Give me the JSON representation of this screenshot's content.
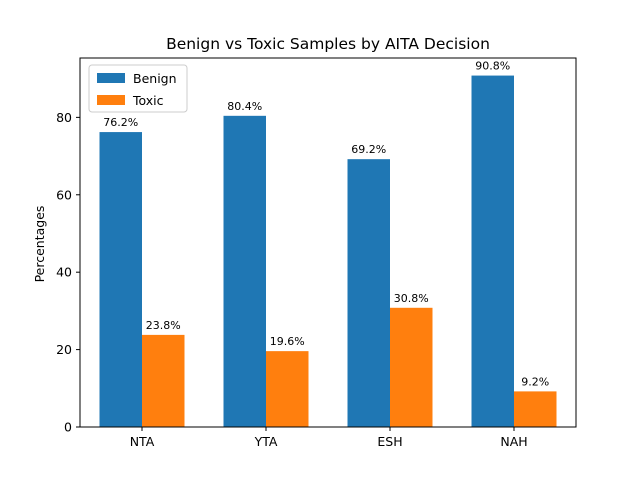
{
  "chart_data": {
    "type": "bar",
    "title": "Benign vs Toxic Samples by AITA Decision",
    "xlabel": "",
    "ylabel": "Percentages",
    "categories": [
      "NTA",
      "YTA",
      "ESH",
      "NAH"
    ],
    "series": [
      {
        "name": "Benign",
        "values": [
          76.2,
          80.4,
          69.2,
          90.8
        ],
        "labels": [
          "76.2%",
          "80.4%",
          "69.2%",
          "90.8%"
        ],
        "color": "#1f77b4"
      },
      {
        "name": "Toxic",
        "values": [
          23.8,
          19.6,
          30.8,
          9.2
        ],
        "labels": [
          "23.8%",
          "19.6%",
          "30.8%",
          "9.2%"
        ],
        "color": "#ff7f0e"
      }
    ],
    "ylim": [
      0,
      95.34
    ],
    "yticks": [
      0,
      20,
      40,
      60,
      80
    ],
    "grid": false,
    "legend_position": "top-left"
  }
}
